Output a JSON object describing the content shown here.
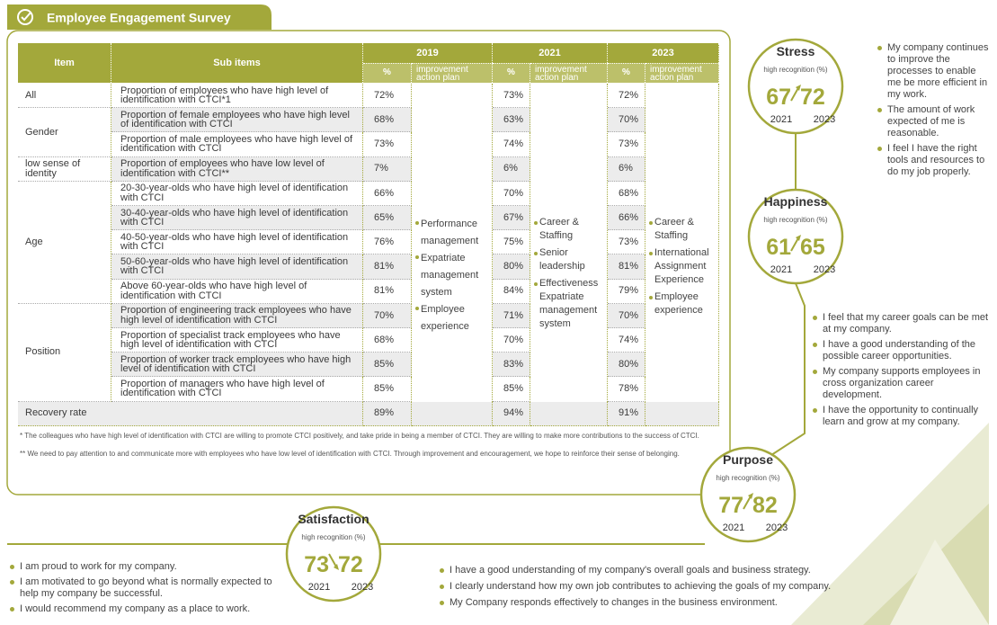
{
  "header": {
    "title": "Employee Engagement Survey"
  },
  "table": {
    "columns": {
      "item": "Item",
      "sub_items": "Sub items",
      "years": [
        "2019",
        "2021",
        "2023"
      ],
      "pct": "%",
      "plan": "improvement action plan"
    },
    "groups": [
      {
        "item": "All",
        "rows": [
          {
            "sub": "Proportion of employees who have high level of identification with CTCI*1",
            "values": [
              "72%",
              "73%",
              "72%"
            ]
          }
        ]
      },
      {
        "item": "Gender",
        "rows": [
          {
            "sub": "Proportion of female employees who have high level of identification with CTCI",
            "values": [
              "68%",
              "63%",
              "70%"
            ]
          },
          {
            "sub": "Proportion of male employees who have high level of identification with CTCI",
            "values": [
              "73%",
              "74%",
              "73%"
            ]
          }
        ]
      },
      {
        "item": "low sense of identity",
        "rows": [
          {
            "sub": "Proportion of employees who have low level of identification with CTCI**",
            "values": [
              "7%",
              "6%",
              "6%"
            ]
          }
        ]
      },
      {
        "item": "Age",
        "rows": [
          {
            "sub": "20-30-year-olds who have high level of identification with CTCI",
            "values": [
              "66%",
              "70%",
              "68%"
            ]
          },
          {
            "sub": "30-40-year-olds who have high level of identification with CTCI",
            "values": [
              "65%",
              "67%",
              "66%"
            ]
          },
          {
            "sub": "40-50-year-olds who have high level of identification with CTCI",
            "values": [
              "76%",
              "75%",
              "73%"
            ]
          },
          {
            "sub": "50-60-year-olds who have high level of identification with CTCI",
            "values": [
              "81%",
              "80%",
              "81%"
            ]
          },
          {
            "sub": "Above 60-year-olds who have high level of identification with CTCI",
            "values": [
              "81%",
              "84%",
              "79%"
            ]
          }
        ]
      },
      {
        "item": "Position",
        "rows": [
          {
            "sub": "Proportion of engineering track employees who have high level of identification with CTCI",
            "values": [
              "70%",
              "71%",
              "70%"
            ]
          },
          {
            "sub": "Proportion of specialist track employees who have high level of identification with CTCI",
            "values": [
              "68%",
              "70%",
              "74%"
            ]
          },
          {
            "sub": "Proportion of worker track employees who have high level of identification with CTCI",
            "values": [
              "85%",
              "83%",
              "80%"
            ]
          },
          {
            "sub": "Proportion of managers who have high level of identification with CTCI",
            "values": [
              "85%",
              "85%",
              "78%"
            ]
          }
        ]
      }
    ],
    "recovery": {
      "item": "Recovery rate",
      "values": [
        "89%",
        "94%",
        "91%"
      ]
    },
    "plans": [
      [
        "Performance management",
        "Expatriate management system",
        "Employee experience"
      ],
      [
        "Career & Staffing",
        "Senior leadership",
        "Effectiveness Expatriate management system"
      ],
      [
        "Career & Staffing",
        "International Assignment Experience",
        "Employee experience"
      ]
    ],
    "notes": [
      "*  The colleagues who have high level of identification with CTCI are willing to promote CTCI positively, and take pride in being a member of CTCI. They are willing to make more contributions to the success of  CTCI.",
      "**  We need to pay attention to and communicate more with employees who have low level of identification with CTCI. Through improvement and encouragement, we hope to reinforce their sense of belonging."
    ]
  },
  "circles": [
    {
      "title": "Stress",
      "label": "high recognition (%)",
      "from": 67,
      "to": 72,
      "years": [
        "2021",
        "2023"
      ],
      "bullets": [
        "My company continues to improve the processes to enable me be more efficient in my work.",
        "The amount of work expected of me is reasonable.",
        "I feel I have the right tools and resources to do my job properly."
      ]
    },
    {
      "title": "Happiness",
      "label": "high recognition (%)",
      "from": 61,
      "to": 65,
      "years": [
        "2021",
        "2023"
      ],
      "bullets": [
        "I feel that my career goals can be met at my company.",
        "I have a good understanding of the possible career opportunities.",
        "My company supports employees in cross organization career development.",
        "I have the opportunity to continually learn and grow at my company."
      ]
    },
    {
      "title": "Purpose",
      "label": "high recognition (%)",
      "from": 77,
      "to": 82,
      "years": [
        "2021",
        "2023"
      ],
      "bullets": [
        "I have a good understanding of my company's overall goals and business strategy.",
        "I clearly understand how my own job contributes to achieving the goals of my company.",
        "My Company responds effectively to changes in the business environment."
      ]
    },
    {
      "title": "Satisfaction",
      "label": "high recognition (%)",
      "from": 73,
      "to": 72,
      "years": [
        "2021",
        "2023"
      ],
      "bullets": [
        "I am proud to work for my company.",
        "I am motivated to go beyond what is normally expected to help my company be successful.",
        "I would recommend my company as a place to work."
      ]
    }
  ]
}
